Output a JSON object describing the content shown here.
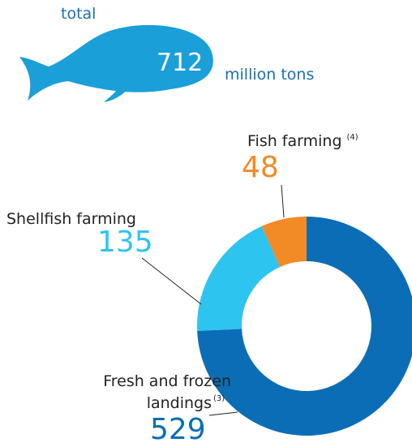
{
  "chart_data": {
    "type": "donut",
    "total": {
      "label": "total",
      "value": 712,
      "unit": "million tons"
    },
    "categories": [
      "Fish farming",
      "Shellfish farming",
      "Fresh and frozen landings"
    ],
    "footnotes": [
      "(4)",
      null,
      "(3)"
    ],
    "values": [
      48,
      135,
      529
    ],
    "colors": [
      "#f28a25",
      "#2ec4f0",
      "#0b6db6"
    ]
  }
}
